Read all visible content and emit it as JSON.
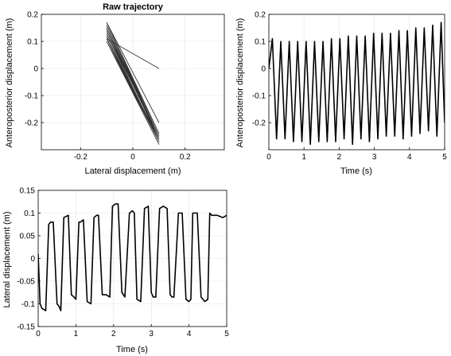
{
  "chart_data": [
    {
      "type": "line",
      "title": "Raw trajectory",
      "xlabel": "Lateral displacement (m)",
      "ylabel": "Anteroposterior displacement (m)",
      "xlim": [
        -0.35,
        0.35
      ],
      "ylim": [
        -0.3,
        0.2
      ],
      "xticks": [
        -0.2,
        0,
        0.2
      ],
      "yticks": [
        -0.2,
        -0.1,
        0,
        0.1,
        0.2
      ],
      "grid": true,
      "line_color": "#333333",
      "series": [
        {
          "x": [
            0.1,
            -0.1,
            0.1,
            -0.1,
            0.1,
            -0.1,
            0.1,
            -0.1,
            0.1,
            -0.1,
            0.1,
            -0.1,
            0.1,
            -0.1,
            0.1,
            -0.1,
            0.1,
            -0.1,
            0.1,
            -0.1,
            0.1,
            -0.1,
            0.1,
            -0.1,
            0.1
          ],
          "y": [
            0.0,
            0.11,
            -0.26,
            0.1,
            -0.26,
            0.1,
            -0.27,
            0.1,
            -0.28,
            0.1,
            -0.27,
            0.11,
            -0.27,
            0.12,
            -0.27,
            0.13,
            -0.25,
            0.14,
            -0.26,
            0.15,
            -0.25,
            0.16,
            -0.24,
            0.17,
            -0.2
          ]
        }
      ]
    },
    {
      "type": "line",
      "title": "",
      "xlabel": "Time (s)",
      "ylabel": "Anteroposterior displacement (m)",
      "xlim": [
        0,
        5
      ],
      "ylim": [
        -0.3,
        0.2
      ],
      "xticks": [
        0,
        1,
        2,
        3,
        4,
        5
      ],
      "yticks": [
        -0.2,
        -0.1,
        0,
        0.1,
        0.2
      ],
      "grid": true,
      "line_color": "#000000",
      "series": [
        {
          "x": [
            0.0,
            0.1,
            0.22,
            0.34,
            0.46,
            0.58,
            0.7,
            0.82,
            0.94,
            1.06,
            1.18,
            1.3,
            1.42,
            1.54,
            1.66,
            1.78,
            1.9,
            2.02,
            2.14,
            2.26,
            2.38,
            2.5,
            2.62,
            2.74,
            2.86,
            2.98,
            3.1,
            3.22,
            3.34,
            3.46,
            3.58,
            3.7,
            3.82,
            3.94,
            4.06,
            4.18,
            4.3,
            4.42,
            4.54,
            4.66,
            4.78,
            4.9,
            5.0
          ],
          "y": [
            0.0,
            0.11,
            -0.26,
            0.1,
            -0.26,
            0.1,
            -0.27,
            0.1,
            -0.27,
            0.1,
            -0.28,
            0.1,
            -0.27,
            0.1,
            -0.27,
            0.11,
            -0.27,
            0.11,
            -0.26,
            0.12,
            -0.28,
            0.12,
            -0.26,
            0.12,
            -0.27,
            0.13,
            -0.26,
            0.13,
            -0.25,
            0.13,
            -0.25,
            0.14,
            -0.26,
            0.14,
            -0.25,
            0.15,
            -0.24,
            0.15,
            -0.23,
            0.16,
            -0.25,
            0.17,
            -0.2
          ]
        }
      ]
    },
    {
      "type": "line",
      "title": "",
      "xlabel": "Time (s)",
      "ylabel": "Lateral displacement (m)",
      "xlim": [
        0,
        5
      ],
      "ylim": [
        -0.15,
        0.15
      ],
      "xticks": [
        0,
        1,
        2,
        3,
        4,
        5
      ],
      "yticks": [
        -0.15,
        -0.1,
        -0.05,
        0,
        0.05,
        0.1,
        0.15
      ],
      "grid": true,
      "line_color": "#000000",
      "series": [
        {
          "x": [
            0.0,
            0.05,
            0.1,
            0.2,
            0.28,
            0.33,
            0.4,
            0.5,
            0.55,
            0.6,
            0.68,
            0.8,
            0.88,
            0.95,
            1.0,
            1.08,
            1.12,
            1.2,
            1.3,
            1.4,
            1.48,
            1.55,
            1.6,
            1.7,
            1.8,
            1.9,
            1.97,
            2.05,
            2.12,
            2.22,
            2.3,
            2.42,
            2.5,
            2.55,
            2.62,
            2.72,
            2.82,
            2.92,
            3.0,
            3.05,
            3.12,
            3.22,
            3.32,
            3.42,
            3.5,
            3.55,
            3.6,
            3.72,
            3.82,
            3.92,
            4.0,
            4.05,
            4.1,
            4.22,
            4.32,
            4.42,
            4.5,
            4.55,
            4.6,
            4.75,
            4.9,
            5.0
          ],
          "y": [
            0.01,
            -0.1,
            -0.11,
            -0.115,
            0.075,
            0.08,
            0.08,
            -0.1,
            -0.105,
            -0.115,
            0.09,
            0.095,
            -0.08,
            -0.085,
            -0.09,
            0.08,
            0.08,
            0.085,
            -0.095,
            -0.1,
            0.09,
            0.095,
            0.095,
            -0.08,
            -0.08,
            -0.085,
            0.115,
            0.12,
            0.12,
            -0.075,
            -0.085,
            0.1,
            0.105,
            0.1,
            -0.09,
            -0.095,
            0.11,
            0.115,
            -0.075,
            -0.085,
            -0.085,
            0.11,
            0.115,
            0.11,
            -0.08,
            -0.085,
            -0.085,
            0.1,
            0.1,
            -0.09,
            -0.095,
            -0.09,
            0.1,
            0.1,
            -0.085,
            -0.095,
            -0.09,
            0.1,
            0.095,
            0.095,
            0.09,
            0.095
          ]
        }
      ]
    }
  ]
}
